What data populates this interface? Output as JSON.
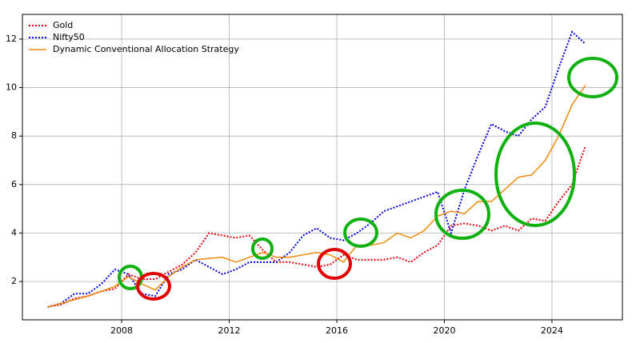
{
  "chart_data": {
    "type": "line",
    "x": [
      2005.25,
      2005.75,
      2006.25,
      2006.75,
      2007.25,
      2007.75,
      2008.25,
      2008.75,
      2009.25,
      2009.75,
      2010.25,
      2010.75,
      2011.25,
      2011.75,
      2012.25,
      2012.75,
      2013.25,
      2013.75,
      2014.25,
      2014.75,
      2015.25,
      2015.75,
      2016.25,
      2016.75,
      2017.25,
      2017.75,
      2018.25,
      2018.75,
      2019.25,
      2019.75,
      2020.25,
      2020.75,
      2021.25,
      2021.75,
      2022.25,
      2022.75,
      2023.25,
      2023.75,
      2024.25,
      2024.75,
      2025.25
    ],
    "series": [
      {
        "name": "Gold",
        "color": "#e8000b",
        "linestyle": "dotted",
        "values": [
          0.95,
          1.05,
          1.3,
          1.4,
          1.6,
          1.7,
          2.3,
          2.1,
          2.1,
          2.4,
          2.7,
          3.2,
          4.0,
          3.9,
          3.8,
          3.9,
          3.3,
          2.8,
          2.8,
          2.7,
          2.6,
          2.7,
          3.1,
          2.9,
          2.9,
          2.9,
          3.0,
          2.8,
          3.2,
          3.5,
          4.3,
          4.4,
          4.3,
          4.1,
          4.3,
          4.1,
          4.6,
          4.5,
          5.3,
          6.0,
          7.6
        ]
      },
      {
        "name": "Nifty50",
        "color": "#0000dd",
        "linestyle": "dotted",
        "values": [
          0.95,
          1.1,
          1.5,
          1.5,
          1.9,
          2.5,
          2.3,
          1.5,
          1.4,
          2.3,
          2.5,
          2.9,
          2.6,
          2.3,
          2.5,
          2.8,
          2.8,
          2.8,
          3.2,
          3.9,
          4.2,
          3.8,
          3.7,
          4.0,
          4.4,
          4.9,
          5.1,
          5.3,
          5.5,
          5.7,
          4.0,
          5.8,
          7.2,
          8.5,
          8.2,
          8.0,
          8.7,
          9.2,
          10.8,
          12.3,
          11.8
        ]
      },
      {
        "name": "Dynamic Conventional Allocation Strategy",
        "color": "#f08a0c",
        "linestyle": "solid",
        "values": [
          0.95,
          1.1,
          1.25,
          1.4,
          1.6,
          1.8,
          2.2,
          1.9,
          1.65,
          2.2,
          2.6,
          2.9,
          2.95,
          3.0,
          2.8,
          3.0,
          3.2,
          3.0,
          3.0,
          3.1,
          3.2,
          3.1,
          2.8,
          3.5,
          3.5,
          3.6,
          4.0,
          3.8,
          4.1,
          4.7,
          4.9,
          4.8,
          5.3,
          5.3,
          5.8,
          6.3,
          6.4,
          7.0,
          8.0,
          9.3,
          10.1
        ]
      }
    ],
    "xlim": [
      2004.31,
      2026.62
    ],
    "xticks": [
      2008,
      2012,
      2016,
      2020,
      2024
    ],
    "ylim": [
      0.42,
      13.02
    ],
    "yticks": [
      2,
      4,
      6,
      8,
      10,
      12
    ],
    "grid": true,
    "legend": "upper-left"
  }
}
